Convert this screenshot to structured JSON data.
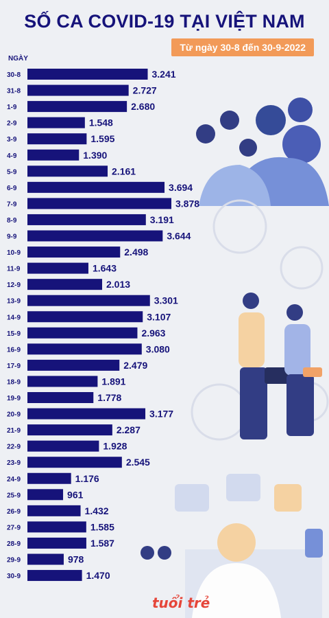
{
  "header": {
    "title": "SỐ CA COVID-19 TẠI VIỆT NAM",
    "subtitle": "Từ ngày 30-8 đến 30-9-2022"
  },
  "brand": {
    "logo_text": "tuổi trẻ"
  },
  "colors": {
    "bar": "#16137a",
    "accent": "#f29a58",
    "background": "#eef0f4"
  },
  "chart_data": {
    "type": "bar",
    "orientation": "horizontal",
    "ylabel": "NGÀY",
    "categories": [
      "30-8",
      "31-8",
      "1-9",
      "2-9",
      "3-9",
      "4-9",
      "5-9",
      "6-9",
      "7-9",
      "8-9",
      "9-9",
      "10-9",
      "11-9",
      "12-9",
      "13-9",
      "14-9",
      "15-9",
      "16-9",
      "17-9",
      "18-9",
      "19-9",
      "20-9",
      "21-9",
      "22-9",
      "23-9",
      "24-9",
      "25-9",
      "26-9",
      "27-9",
      "28-9",
      "29-9",
      "30-9"
    ],
    "values": [
      3241,
      2727,
      2680,
      1548,
      1595,
      1390,
      2161,
      3694,
      3878,
      3191,
      3644,
      2498,
      1643,
      2013,
      3301,
      3107,
      2963,
      3080,
      2479,
      1891,
      1778,
      3177,
      2287,
      1928,
      2545,
      1176,
      961,
      1432,
      1585,
      1587,
      978,
      1470
    ],
    "value_labels": [
      "3.241",
      "2.727",
      "2.680",
      "1.548",
      "1.595",
      "1.390",
      "2.161",
      "3.694",
      "3.878",
      "3.191",
      "3.644",
      "2.498",
      "1.643",
      "2.013",
      "3.301",
      "3.107",
      "2.963",
      "3.080",
      "2.479",
      "1.891",
      "1.778",
      "3.177",
      "2.287",
      "1.928",
      "2.545",
      "1.176",
      "961",
      "1.432",
      "1.585",
      "1.587",
      "978",
      "1.470"
    ],
    "grid": false,
    "legend": "none"
  }
}
